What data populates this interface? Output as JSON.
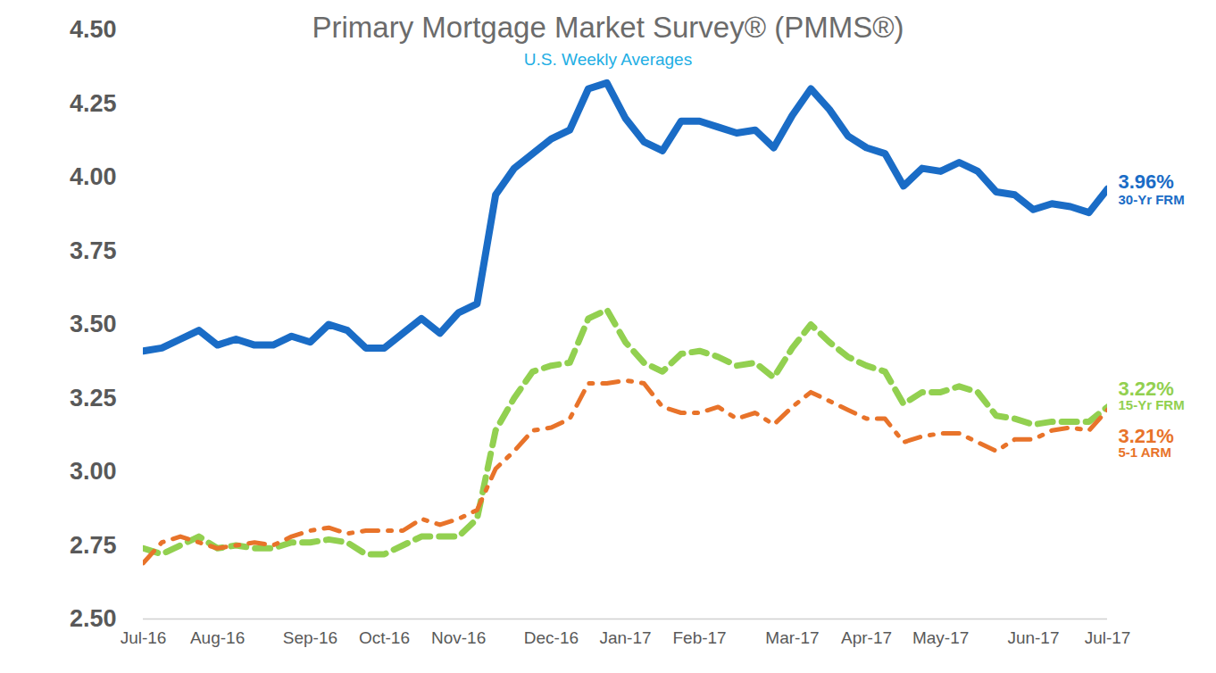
{
  "chart_data": {
    "type": "line",
    "title": "Primary Mortgage Market Survey® (PMMS®)",
    "subtitle": "U.S. Weekly Averages",
    "categories": [
      "Jul-16",
      null,
      null,
      null,
      "Aug-16",
      null,
      null,
      null,
      null,
      "Sep-16",
      null,
      null,
      null,
      "Oct-16",
      null,
      null,
      null,
      "Nov-16",
      null,
      null,
      null,
      null,
      "Dec-16",
      null,
      null,
      null,
      "Jan-17",
      null,
      null,
      null,
      "Feb-17",
      null,
      null,
      null,
      null,
      "Mar-17",
      null,
      null,
      null,
      "Apr-17",
      null,
      null,
      null,
      "May-17",
      null,
      null,
      null,
      null,
      "Jun-17",
      null,
      null,
      null,
      "Jul-17"
    ],
    "ylim": [
      2.5,
      4.5
    ],
    "yticks": [
      {
        "value": 2.5,
        "label": "2.50"
      },
      {
        "value": 2.75,
        "label": "2.75"
      },
      {
        "value": 3,
        "label": "3.00"
      },
      {
        "value": 3.25,
        "label": "3.25"
      },
      {
        "value": 3.5,
        "label": "3.50"
      },
      {
        "value": 3.75,
        "label": "3.75"
      },
      {
        "value": 4,
        "label": "4.00"
      },
      {
        "value": 4.25,
        "label": "4.25"
      },
      {
        "value": 4.5,
        "label": "4.50"
      }
    ],
    "grid": false,
    "series": [
      {
        "name": "30-Yr FRM",
        "color": "#1a6cc6",
        "line_style": "solid",
        "values": [
          3.41,
          3.42,
          3.45,
          3.48,
          3.43,
          3.45,
          3.43,
          3.43,
          3.46,
          3.44,
          3.5,
          3.48,
          3.42,
          3.42,
          3.47,
          3.52,
          3.47,
          3.54,
          3.57,
          3.94,
          4.03,
          4.08,
          4.13,
          4.16,
          4.3,
          4.32,
          4.2,
          4.12,
          4.09,
          4.19,
          4.19,
          4.17,
          4.15,
          4.16,
          4.1,
          4.21,
          4.3,
          4.23,
          4.14,
          4.1,
          4.08,
          3.97,
          4.03,
          4.02,
          4.05,
          4.02,
          3.95,
          3.94,
          3.89,
          3.91,
          3.9,
          3.88,
          3.96
        ],
        "value_labels": [
          null,
          null,
          null,
          null,
          null,
          null,
          null,
          null,
          null,
          null,
          null,
          null,
          null,
          null,
          null,
          null,
          null,
          null,
          null,
          null,
          null,
          null,
          null,
          null,
          null,
          null,
          null,
          null,
          null,
          null,
          null,
          null,
          null,
          null,
          null,
          null,
          null,
          null,
          null,
          null,
          null,
          null,
          null,
          null,
          null,
          null,
          null,
          null,
          null,
          null,
          null,
          null,
          "3.96%"
        ]
      },
      {
        "name": "15-Yr FRM",
        "color": "#92d050",
        "line_style": "dashed",
        "values": [
          2.74,
          2.72,
          2.75,
          2.78,
          2.74,
          2.75,
          2.74,
          2.74,
          2.76,
          2.76,
          2.77,
          2.76,
          2.72,
          2.72,
          2.75,
          2.78,
          2.78,
          2.78,
          2.84,
          3.14,
          3.25,
          3.34,
          3.36,
          3.37,
          3.52,
          3.55,
          3.44,
          3.37,
          3.34,
          3.4,
          3.41,
          3.39,
          3.36,
          3.37,
          3.32,
          3.42,
          3.5,
          3.44,
          3.39,
          3.36,
          3.34,
          3.23,
          3.27,
          3.27,
          3.29,
          3.27,
          3.19,
          3.18,
          3.16,
          3.17,
          3.17,
          3.17,
          3.22
        ],
        "value_labels": [
          null,
          null,
          null,
          null,
          null,
          null,
          null,
          null,
          null,
          null,
          null,
          null,
          null,
          null,
          null,
          null,
          null,
          null,
          null,
          null,
          null,
          null,
          null,
          null,
          null,
          null,
          null,
          null,
          null,
          null,
          null,
          null,
          null,
          null,
          null,
          null,
          null,
          null,
          null,
          null,
          null,
          null,
          null,
          null,
          null,
          null,
          null,
          null,
          null,
          null,
          null,
          null,
          "3.22%"
        ]
      },
      {
        "name": "5-1 ARM",
        "color": "#e8732a",
        "line_style": "dashdot",
        "values": [
          2.69,
          2.76,
          2.78,
          2.76,
          2.74,
          2.75,
          2.76,
          2.75,
          2.78,
          2.8,
          2.81,
          2.79,
          2.8,
          2.8,
          2.8,
          2.84,
          2.82,
          2.84,
          2.87,
          3.01,
          3.07,
          3.14,
          3.15,
          3.18,
          3.3,
          3.3,
          3.31,
          3.3,
          3.22,
          3.2,
          3.2,
          3.22,
          3.18,
          3.2,
          3.16,
          3.22,
          3.27,
          3.24,
          3.21,
          3.18,
          3.18,
          3.1,
          3.12,
          3.13,
          3.13,
          3.1,
          3.07,
          3.11,
          3.11,
          3.14,
          3.15,
          3.14,
          3.21
        ],
        "value_labels": [
          null,
          null,
          null,
          null,
          null,
          null,
          null,
          null,
          null,
          null,
          null,
          null,
          null,
          null,
          null,
          null,
          null,
          null,
          null,
          null,
          null,
          null,
          null,
          null,
          null,
          null,
          null,
          null,
          null,
          null,
          null,
          null,
          null,
          null,
          null,
          null,
          null,
          null,
          null,
          null,
          null,
          null,
          null,
          null,
          null,
          null,
          null,
          null,
          null,
          null,
          null,
          null,
          "3.21%"
        ]
      }
    ]
  }
}
